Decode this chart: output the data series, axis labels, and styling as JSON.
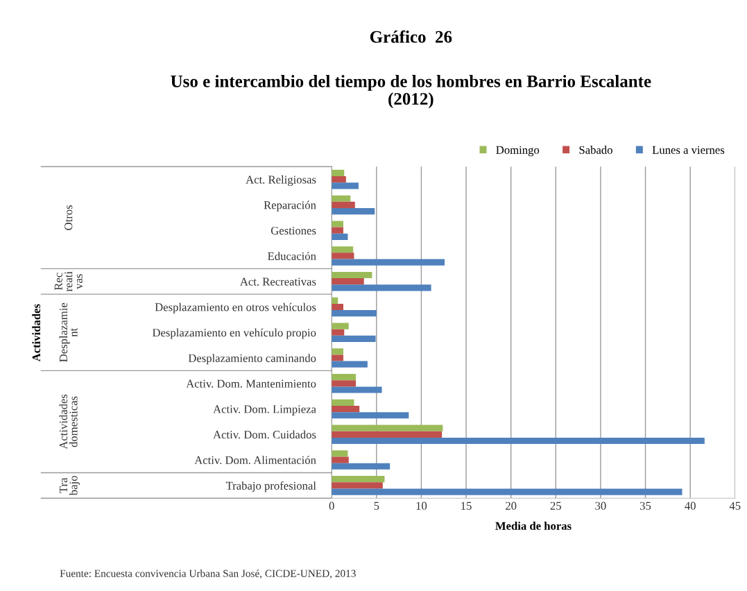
{
  "chart_data": {
    "type": "bar",
    "orientation": "horizontal",
    "title": "Gráfico  26",
    "subtitle": "Uso e intercambio del tiempo de los hombres en Barrio Escalante\n(2012)",
    "xlabel": "Media de horas",
    "categories": [
      "Act. Religiosas",
      "Reparación",
      "Gestiones",
      "Educación",
      "Act. Recreativas",
      "Desplazamiento en otros vehículos",
      "Desplazamiento en vehículo propio",
      "Desplazamiento caminando",
      "Activ. Dom. Mantenimiento",
      "Activ. Dom. Limpieza",
      "Activ. Dom. Cuidados",
      "Activ. Dom. Alimentación",
      "Trabajo profesional"
    ],
    "series": [
      {
        "name": "Domingo",
        "color": "#9bbb59",
        "values": [
          1.4,
          2.1,
          1.3,
          2.4,
          4.5,
          0.7,
          1.9,
          1.3,
          2.7,
          2.5,
          12.4,
          1.8,
          5.9
        ]
      },
      {
        "name": "Sabado",
        "color": "#c0504d",
        "values": [
          1.6,
          2.6,
          1.3,
          2.5,
          3.6,
          1.3,
          1.4,
          1.3,
          2.7,
          3.1,
          12.3,
          1.9,
          5.7
        ]
      },
      {
        "name": "Lunes a viernes",
        "color": "#4f81bd",
        "values": [
          3.0,
          4.8,
          1.8,
          12.6,
          11.1,
          5.0,
          4.9,
          4.0,
          5.6,
          8.6,
          41.6,
          6.5,
          39.1
        ]
      }
    ],
    "xlim": [
      0,
      45
    ],
    "xticks": [
      0,
      5,
      10,
      15,
      20,
      25,
      30,
      35,
      40,
      45
    ],
    "grid": "x",
    "legend": "top",
    "annotations": [
      "Otros",
      "Rec\nreati\nvas",
      "Desplazamie\nnt",
      "Actividades\ndomesticas",
      "Tra\nbajo",
      "Actividades",
      "Fuente: Encuesta convivencia Urbana San José, CICDE-UNED, 2013"
    ]
  }
}
